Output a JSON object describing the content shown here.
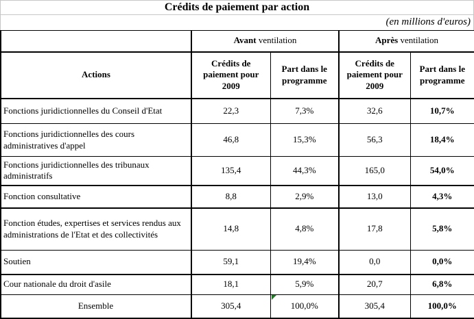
{
  "title": "Crédits de paiement par action",
  "units_note": "(en millions d'euros)",
  "table": {
    "group_headers": [
      {
        "bold": "Avant",
        "regular": " ventilation"
      },
      {
        "bold": "Après",
        "regular": " ventilation"
      }
    ],
    "actions_header": "Actions",
    "sub_headers": [
      "Crédits de paiement pour 2009",
      "Part dans le programme",
      "Crédits de paiement pour 2009",
      "Part dans le programme"
    ],
    "rows": [
      {
        "action": "Fonctions juridictionnelles du Conseil d'Etat",
        "avant_credits": "22,3",
        "avant_part": "7,3%",
        "apres_credits": "32,6",
        "apres_part": "10,7%"
      },
      {
        "action": "Fonctions juridictionnelles des cours administratives d'appel",
        "avant_credits": "46,8",
        "avant_part": "15,3%",
        "apres_credits": "56,3",
        "apres_part": "18,4%"
      },
      {
        "action": "Fonctions juridictionnelles des tribunaux administratifs",
        "avant_credits": "135,4",
        "avant_part": "44,3%",
        "apres_credits": "165,0",
        "apres_part": "54,0%"
      },
      {
        "action": "Fonction consultative",
        "avant_credits": "8,8",
        "avant_part": "2,9%",
        "apres_credits": "13,0",
        "apres_part": "4,3%"
      },
      {
        "action": "Fonction études, expertises et services rendus aux administrations de l'Etat et des collectivités",
        "avant_credits": "14,8",
        "avant_part": "4,8%",
        "apres_credits": "17,8",
        "apres_part": "5,8%"
      },
      {
        "action": "Soutien",
        "avant_credits": "59,1",
        "avant_part": "19,4%",
        "apres_credits": "0,0",
        "apres_part": "0,0%"
      },
      {
        "action": "Cour nationale du droit d'asile",
        "avant_credits": "18,1",
        "avant_part": "5,9%",
        "apres_credits": "20,7",
        "apres_part": "6,8%"
      }
    ],
    "total_row": {
      "action": "Ensemble",
      "avant_credits": "305,4",
      "avant_part": "100,0%",
      "apres_credits": "305,4",
      "apres_part": "100,0%"
    }
  },
  "icons": {
    "error_indicator": "green-corner-triangle"
  },
  "colors": {
    "grid_gray": "#c6c6c6",
    "table_border": "#000000",
    "error_indicator_green": "#1e7d23"
  }
}
